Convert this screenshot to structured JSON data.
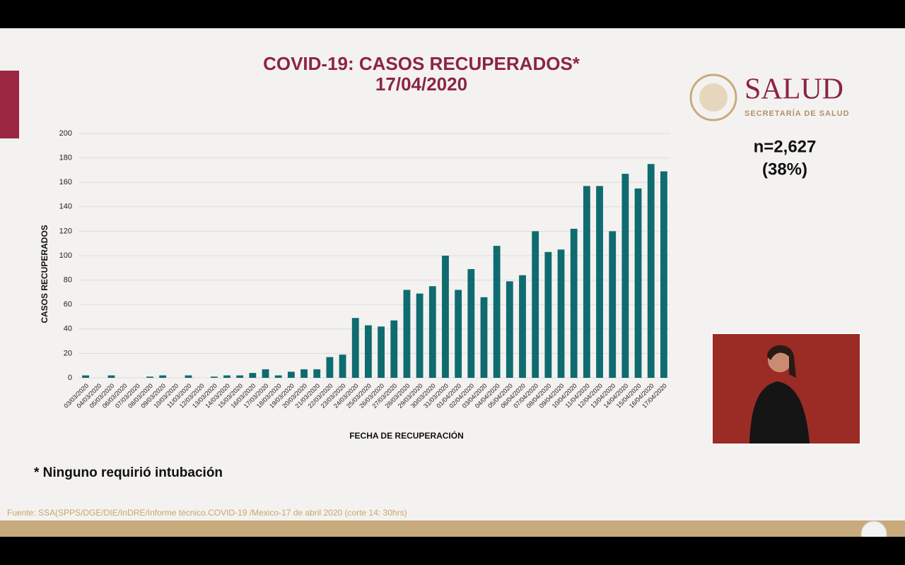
{
  "chart_data": {
    "type": "bar",
    "title": "COVID-19: CASOS RECUPERADOS*",
    "subtitle": "17/04/2020",
    "y_label": "CASOS RECUPERADOS",
    "x_label": "FECHA DE RECUPERACIÓN",
    "annotations": [
      "n=2,627",
      "(38%)"
    ],
    "footnote": "* Ninguno requirió intubación",
    "source": "Fuente: SSA(SPPS/DGE/DIE/InDRE/Informe técnico.COVID-19 /Mexico-17 de abril 2020 (corte 14: 30hrs)",
    "categories": [
      "03/03/2020",
      "04/03/2020",
      "05/03/2020",
      "06/03/2020",
      "07/03/2020",
      "08/03/2020",
      "09/03/2020",
      "10/03/2020",
      "11/03/2020",
      "12/03/2020",
      "13/03/2020",
      "14/03/2020",
      "15/03/2020",
      "16/03/2020",
      "17/03/2020",
      "18/03/2020",
      "19/03/2020",
      "20/03/2020",
      "21/03/2020",
      "22/03/2020",
      "23/03/2020",
      "24/03/2020",
      "25/03/2020",
      "26/03/2020",
      "27/03/2020",
      "28/03/2020",
      "29/03/2020",
      "30/03/2020",
      "31/03/2020",
      "01/04/2020",
      "02/04/2020",
      "03/04/2020",
      "04/04/2020",
      "05/04/2020",
      "06/04/2020",
      "07/04/2020",
      "08/04/2020",
      "09/04/2020",
      "10/04/2020",
      "11/04/2020",
      "12/04/2020",
      "13/04/2020",
      "14/04/2020",
      "15/04/2020",
      "16/04/2020",
      "17/04/2020"
    ],
    "values": [
      2,
      0,
      2,
      0,
      0,
      1,
      2,
      0,
      2,
      0,
      1,
      2,
      2,
      4,
      7,
      2,
      5,
      7,
      7,
      17,
      19,
      49,
      43,
      42,
      47,
      72,
      69,
      75,
      100,
      72,
      89,
      66,
      108,
      79,
      84,
      120,
      103,
      105,
      122,
      157,
      157,
      120,
      167,
      155,
      175,
      169
    ],
    "color": "#0f6b70",
    "ylim": [
      0,
      200
    ],
    "yticks": [
      0,
      20,
      40,
      60,
      80,
      100,
      120,
      140,
      160,
      180,
      200
    ],
    "grid": true
  },
  "logo": {
    "title": "SALUD",
    "subtitle": "SECRETARÍA DE SALUD"
  }
}
